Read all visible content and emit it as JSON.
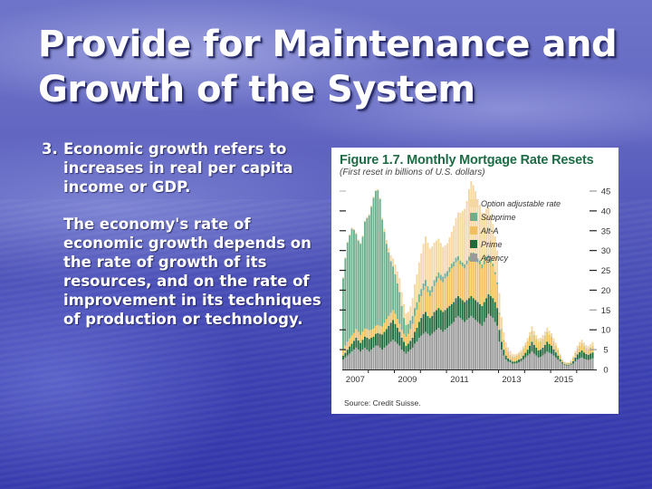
{
  "slide": {
    "title": "Provide for Maintenance and Growth of the System",
    "point_number": "3.",
    "point_text": "Economic growth refers to increases in real per capita income or GDP.",
    "paragraph": "The economy's rate of economic growth depends on the rate of growth of its resources, and on the rate of improvement in its techniques of production or technology."
  },
  "chart_data": {
    "type": "bar",
    "stacked": true,
    "title": "Figure 1.7. Monthly Mortgage Rate Resets",
    "subtitle": "(First reset in billions of U.S. dollars)",
    "source": "Source: Credit Suisse.",
    "xlabel": "",
    "ylabel": "",
    "ylim": [
      0,
      45
    ],
    "yticks": [
      0,
      5,
      10,
      15,
      20,
      25,
      30,
      35,
      40,
      45
    ],
    "xtick_labels": [
      "2007",
      "2009",
      "2011",
      "2013",
      "2015"
    ],
    "grid": false,
    "legend_position": "upper right (inside plot)",
    "colors": {
      "Option adjustable rate": "#f5d7a3",
      "Subprime": "#6fae8c",
      "Alt-A": "#f0c060",
      "Prime": "#1f6b3c",
      "Agency": "#9a9a9a"
    },
    "series_order_bottom_to_top": [
      "Agency",
      "Prime",
      "Alt-A",
      "Subprime",
      "Option adjustable rate"
    ],
    "legend": [
      "Option adjustable rate",
      "Subprime",
      "Alt-A",
      "Prime",
      "Agency"
    ],
    "x_start": "2007-01",
    "x_frequency": "monthly",
    "series": [
      {
        "name": "Agency",
        "values": [
          2.5,
          3,
          3.5,
          4,
          4.5,
          5,
          5.5,
          5,
          4.5,
          5,
          5.5,
          5,
          4.5,
          5,
          5.5,
          6,
          6,
          5.5,
          5,
          5.5,
          6,
          6.5,
          7,
          7.5,
          7,
          6.5,
          6,
          5,
          4.5,
          4,
          4.5,
          5,
          5.5,
          6.5,
          7,
          8,
          8.5,
          9,
          9.5,
          9,
          8.5,
          9,
          9.5,
          10,
          10.5,
          10,
          9.5,
          10,
          10.5,
          11,
          11.5,
          12,
          13,
          13.5,
          13,
          12.5,
          12,
          12.5,
          13,
          13.5,
          13,
          12.5,
          12,
          11.5,
          11,
          12,
          13,
          14,
          13.5,
          13,
          12,
          11,
          7,
          5,
          3.5,
          2.5,
          2,
          1.8,
          1.5,
          1.5,
          1.6,
          1.8,
          2,
          2.5,
          3,
          3.5,
          4,
          4.5,
          4,
          3.5,
          3,
          3.2,
          3.5,
          4,
          4.5,
          4.2,
          4,
          3.5,
          3,
          2.5,
          2,
          1.5,
          1.2,
          1,
          1,
          1.2,
          1.5,
          2,
          2.5,
          2.8,
          3,
          2.7,
          2.5,
          2.4,
          2.6,
          2.8
        ]
      },
      {
        "name": "Prime",
        "values": [
          1,
          1.2,
          1.5,
          1.8,
          2,
          2.2,
          2.5,
          2.3,
          2.2,
          2.5,
          2.8,
          3,
          3.2,
          3,
          2.8,
          3,
          3.2,
          3.5,
          3.8,
          4,
          4.2,
          4.5,
          4.8,
          5,
          4.5,
          4,
          3.5,
          3,
          2.5,
          2,
          2,
          2.2,
          2.5,
          3,
          3.5,
          4,
          4.5,
          5,
          5,
          4.5,
          4.5,
          4.5,
          5,
          5,
          5,
          5,
          5,
          5,
          5,
          5,
          5,
          5,
          5,
          5,
          5,
          5,
          5,
          5,
          5,
          5,
          5,
          5,
          5,
          5,
          5,
          5,
          5,
          5,
          5,
          5,
          5,
          4.5,
          3,
          2,
          1.5,
          1,
          0.8,
          0.6,
          0.5,
          0.5,
          0.6,
          0.7,
          0.8,
          1,
          1.2,
          1.5,
          2,
          2.5,
          2.2,
          2,
          1.8,
          1.8,
          2,
          2.2,
          2.5,
          2.2,
          2,
          1.6,
          1.3,
          1,
          0.6,
          0.3,
          0.2,
          0.2,
          0.2,
          0.3,
          0.6,
          1,
          1.3,
          1.6,
          1.8,
          1.6,
          1.4,
          1.3,
          1.4,
          1.5
        ]
      },
      {
        "name": "Alt-A",
        "values": [
          1.5,
          1.8,
          2,
          2,
          2,
          2,
          2.2,
          2.2,
          2,
          2,
          2,
          2.2,
          2.2,
          2,
          2,
          2,
          2,
          2,
          2,
          2.2,
          2.5,
          2.5,
          2.5,
          2.5,
          2.5,
          2.2,
          2,
          2,
          2,
          2.2,
          2.5,
          3,
          3.5,
          4,
          4.5,
          5,
          5.5,
          6,
          6.5,
          6,
          5.5,
          6,
          6.5,
          7,
          7.5,
          7.5,
          7.5,
          8,
          8,
          8.5,
          9,
          9,
          9,
          9,
          8.5,
          8.5,
          8.5,
          9,
          9.5,
          10,
          10.5,
          10.5,
          10,
          10,
          9.5,
          9.5,
          9.5,
          9,
          8.5,
          8,
          7,
          6,
          4,
          3,
          2.2,
          1.8,
          1.5,
          1.2,
          1,
          1,
          1.1,
          1.2,
          1.4,
          1.6,
          1.8,
          2,
          2.3,
          2.5,
          2.3,
          2.1,
          2,
          2,
          2.1,
          2.2,
          2.3,
          2.2,
          2,
          1.8,
          1.5,
          1.2,
          0.8,
          0.4,
          0.3,
          0.3,
          0.3,
          0.4,
          0.7,
          1,
          1.3,
          1.5,
          1.6,
          1.5,
          1.4,
          1.3,
          1.4,
          1.5
        ]
      },
      {
        "name": "Subprime",
        "values": [
          18,
          22,
          25,
          26,
          27,
          26,
          24,
          23,
          23,
          24,
          27,
          28,
          29,
          31,
          33,
          34,
          34,
          32,
          27,
          23,
          19,
          16,
          13,
          11,
          10,
          9,
          8,
          6,
          4,
          3,
          2.5,
          2.2,
          2,
          2,
          2,
          2,
          1.8,
          1.7,
          1.6,
          1.5,
          1.5,
          1.5,
          1.5,
          1.5,
          1.5,
          1.4,
          1.4,
          1.3,
          1.3,
          1.3,
          1.2,
          1.2,
          1.2,
          1.1,
          1,
          1,
          1,
          1,
          1,
          1,
          1,
          1,
          1,
          1,
          1,
          1,
          1,
          0.9,
          0.8,
          0.7,
          0.6,
          0.5,
          0.3,
          0.2,
          0.2,
          0.1,
          0.1,
          0.1,
          0.1,
          0.1,
          0.1,
          0.1,
          0.1,
          0.1,
          0.1,
          0.1,
          0.1,
          0.1,
          0.1,
          0.1,
          0.1,
          0.1,
          0.1,
          0.1,
          0.1,
          0.1,
          0.1,
          0.1,
          0.1,
          0.1,
          0.1,
          0.1,
          0.1,
          0.1,
          0.1,
          0.1,
          0.1,
          0.1,
          0.1,
          0.1,
          0.1,
          0.1,
          0.1,
          0.1,
          0.1,
          0.1
        ]
      },
      {
        "name": "Option adjustable rate",
        "values": [
          0.3,
          0.3,
          0.3,
          0.3,
          0.3,
          0.3,
          0.3,
          0.3,
          0.3,
          0.3,
          0.3,
          0.3,
          0.3,
          0.3,
          0.3,
          0.3,
          0.3,
          0.3,
          0.5,
          0.8,
          1,
          1.2,
          1.5,
          2,
          2.5,
          3,
          3.5,
          3.5,
          3.5,
          3,
          3,
          3.5,
          4.5,
          6,
          7,
          8,
          9,
          10,
          11,
          11,
          10.5,
          10,
          9.5,
          9,
          8.5,
          8,
          7.5,
          7,
          7,
          7.5,
          8,
          9,
          10,
          11,
          12,
          13,
          14,
          15,
          17,
          18,
          17,
          16,
          15,
          14,
          13,
          12,
          12,
          12,
          11,
          10,
          9,
          8,
          5,
          3,
          2,
          1.5,
          1.2,
          1,
          0.8,
          0.7,
          0.6,
          0.6,
          0.6,
          0.6,
          0.7,
          0.8,
          1,
          1.3,
          1.1,
          1,
          0.9,
          0.9,
          1,
          1.1,
          1.2,
          1.1,
          1,
          0.9,
          0.8,
          0.6,
          0.4,
          0.3,
          0.2,
          0.2,
          0.2,
          0.3,
          0.4,
          0.6,
          0.8,
          0.9,
          1,
          0.9,
          0.8,
          0.8,
          0.9,
          1
        ]
      }
    ]
  }
}
